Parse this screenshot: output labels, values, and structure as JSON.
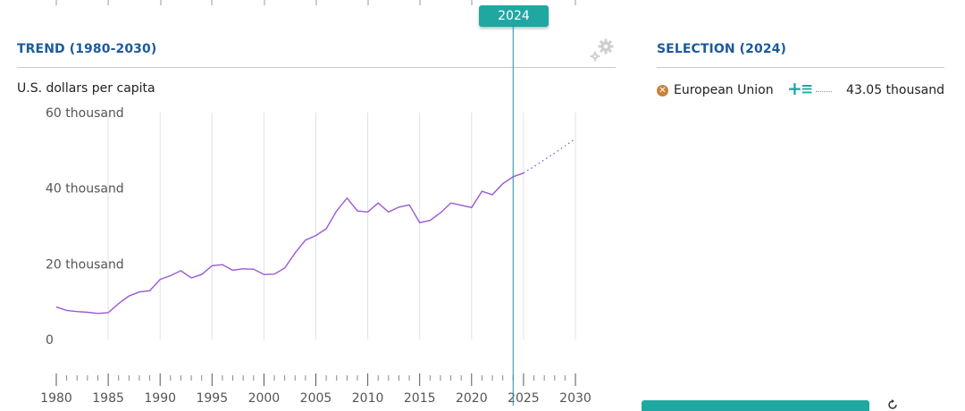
{
  "marker": {
    "year_label": "2024"
  },
  "trend_panel": {
    "title": "TREND (1980-2030)",
    "units": "U.S. dollars per capita"
  },
  "selection_panel": {
    "title": "SELECTION (2024)",
    "items": [
      {
        "name": "European Union",
        "value": "43.05 thousand"
      }
    ]
  },
  "icons": {
    "gear": "gear-icon",
    "remove": "close-circle-icon",
    "add": "plus-icon",
    "list": "list-icon",
    "reset": "reset-icon"
  },
  "colors": {
    "title": "#1d5a9c",
    "accent": "#1fa8a2",
    "series": "#9b59d6",
    "marker": "#c9833c"
  },
  "chart_data": {
    "type": "line",
    "ylabel": "U.S. dollars per capita",
    "ylim": [
      0,
      60000
    ],
    "xlim": [
      1980,
      2030
    ],
    "yticks": [
      {
        "value": 0,
        "label": "0"
      },
      {
        "value": 20000,
        "label": "20 thousand"
      },
      {
        "value": 40000,
        "label": "40 thousand"
      },
      {
        "value": 60000,
        "label": "60 thousand"
      }
    ],
    "xticks": [
      1980,
      1985,
      1990,
      1995,
      2000,
      2005,
      2010,
      2015,
      2020,
      2025,
      2030
    ],
    "selected_year": 2024,
    "series": [
      {
        "x": [
          1980,
          1981,
          1982,
          1983,
          1984,
          1985,
          1986,
          1987,
          1988,
          1989,
          1990,
          1991,
          1992,
          1993,
          1994,
          1995,
          1996,
          1997,
          1998,
          1999,
          2000,
          2001,
          2002,
          2003,
          2004,
          2005,
          2006,
          2007,
          2008,
          2009,
          2010,
          2011,
          2012,
          2013,
          2014,
          2015,
          2016,
          2017,
          2018,
          2019,
          2020,
          2021,
          2022,
          2023,
          2024,
          2025
        ],
        "values": [
          8600,
          7700,
          7400,
          7200,
          6900,
          7100,
          9500,
          11500,
          12600,
          12900,
          15900,
          16900,
          18200,
          16300,
          17200,
          19500,
          19800,
          18300,
          18700,
          18600,
          17200,
          17300,
          18900,
          22900,
          26300,
          27500,
          29300,
          34000,
          37400,
          34000,
          33700,
          36100,
          33700,
          35000,
          35600,
          30900,
          31500,
          33500,
          36100,
          35500,
          34900,
          39200,
          38300,
          41200,
          43050,
          44000
        ]
      },
      {
        "x": [
          2025,
          2026,
          2027,
          2028,
          2029,
          2030
        ],
        "values": [
          44000,
          45700,
          47500,
          49300,
          51200,
          53100
        ],
        "projected": true
      }
    ]
  }
}
